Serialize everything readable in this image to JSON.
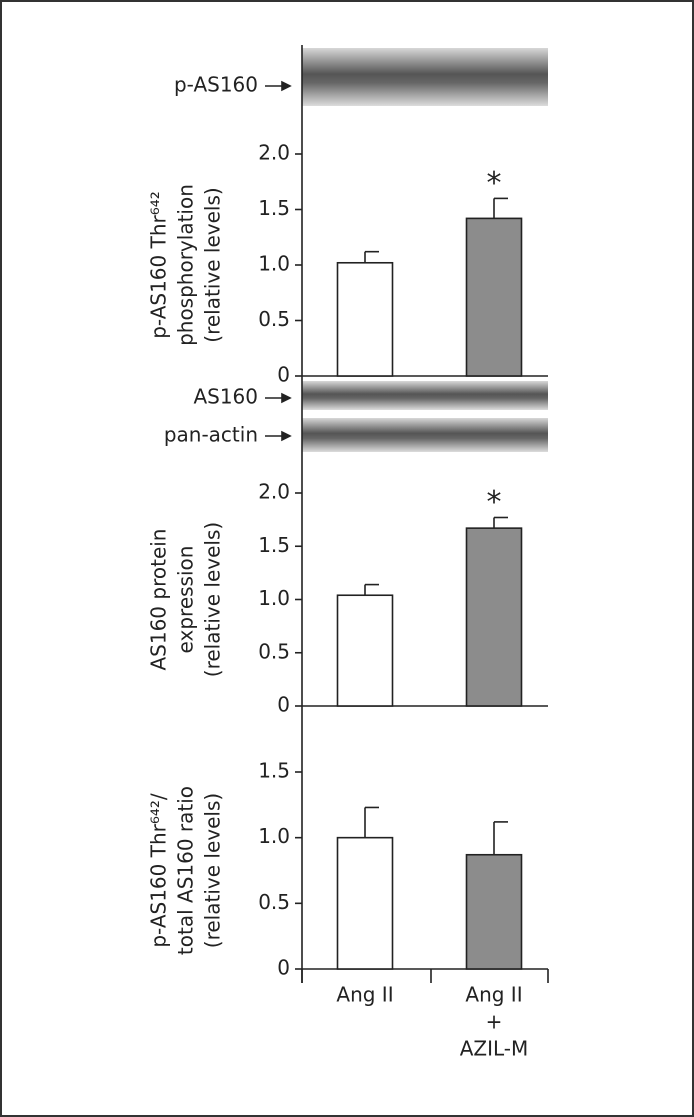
{
  "blots": [
    {
      "label": "p-AS160"
    },
    {
      "label": "AS160"
    },
    {
      "label": "pan-actin"
    }
  ],
  "chart_data": [
    {
      "type": "bar",
      "ylabel": [
        "p-AS160 Thr⁶⁴²",
        "phosphorylation",
        "(relative levels)"
      ],
      "values": [
        1.02,
        1.42
      ],
      "errors": [
        0.1,
        0.18
      ],
      "sig_labels": [
        null,
        "*"
      ],
      "colors": [
        "#ffffff",
        "#8c8c8c"
      ],
      "ylim": [
        0,
        2
      ],
      "yticks": [
        0,
        0.5,
        {
          "value": 1,
          "label": "1.0"
        },
        1.5,
        {
          "value": 2,
          "label": "2.0"
        }
      ]
    },
    {
      "type": "bar",
      "ylabel": [
        "AS160 protein",
        "expression",
        "(relative levels)"
      ],
      "values": [
        1.04,
        1.67
      ],
      "errors": [
        0.1,
        0.1
      ],
      "sig_labels": [
        null,
        "*"
      ],
      "colors": [
        "#ffffff",
        "#8c8c8c"
      ],
      "ylim": [
        0,
        2
      ],
      "yticks": [
        0,
        0.5,
        {
          "value": 1,
          "label": "1.0"
        },
        1.5,
        {
          "value": 2,
          "label": "2.0"
        }
      ]
    },
    {
      "type": "bar",
      "ylabel": [
        "p-AS160 Thr⁶⁴²/",
        "total AS160 ratio",
        "(relative levels)"
      ],
      "categories": [
        [
          "Ang II"
        ],
        [
          "Ang II",
          "+",
          "AZIL-M"
        ]
      ],
      "values": [
        1.0,
        0.87
      ],
      "errors": [
        0.23,
        0.25
      ],
      "colors": [
        "#ffffff",
        "#8c8c8c"
      ],
      "ylim": [
        0,
        1.5
      ],
      "yticks": [
        0,
        0.5,
        {
          "value": 1,
          "label": "1.0"
        },
        1.5
      ]
    }
  ]
}
